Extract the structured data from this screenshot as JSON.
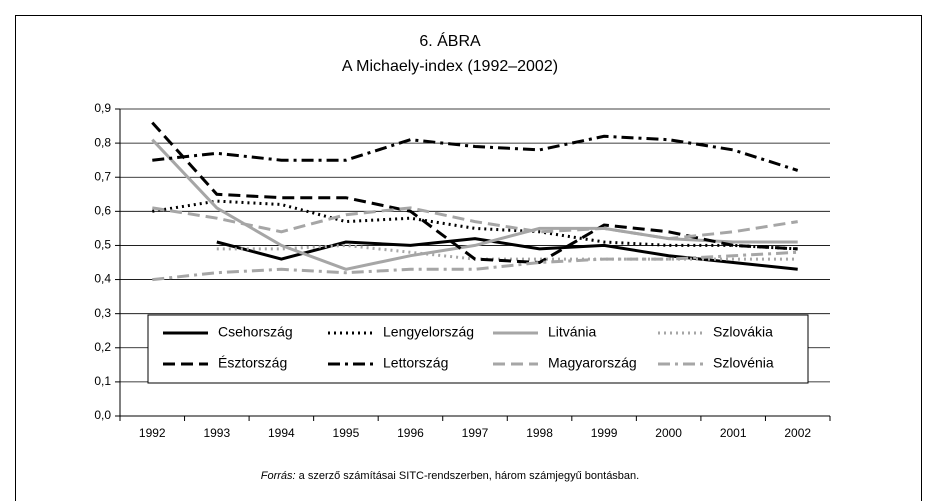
{
  "chart_data": {
    "type": "line",
    "title": "6. ÁBRA",
    "subtitle": "A Michaely-index (1992–2002)",
    "categories": [
      "1992",
      "1993",
      "1994",
      "1995",
      "1996",
      "1997",
      "1998",
      "1999",
      "2000",
      "2001",
      "2002"
    ],
    "series": [
      {
        "name": "Csehország",
        "color": "#000000",
        "dash": "solid",
        "values": [
          null,
          0.51,
          0.46,
          0.51,
          0.5,
          0.52,
          0.49,
          0.5,
          0.47,
          0.45,
          0.43
        ]
      },
      {
        "name": "Lengyelország",
        "color": "#000000",
        "dash": "dotted",
        "values": [
          0.6,
          0.63,
          0.62,
          0.57,
          0.58,
          0.55,
          0.54,
          0.51,
          0.5,
          0.5,
          0.49
        ]
      },
      {
        "name": "Litvánia",
        "color": "#a6a6a6",
        "dash": "solid",
        "values": [
          0.81,
          0.61,
          0.5,
          0.43,
          0.47,
          0.5,
          0.55,
          0.55,
          0.52,
          0.51,
          0.51
        ]
      },
      {
        "name": "Szlovákia",
        "color": "#a6a6a6",
        "dash": "dotted",
        "values": [
          null,
          0.49,
          0.49,
          0.5,
          0.48,
          0.46,
          0.46,
          0.46,
          0.46,
          0.46,
          0.46
        ]
      },
      {
        "name": "Észtország",
        "color": "#000000",
        "dash": "dashed",
        "values": [
          0.86,
          0.65,
          0.64,
          0.64,
          0.6,
          0.46,
          0.45,
          0.56,
          0.54,
          0.5,
          0.49
        ]
      },
      {
        "name": "Lettország",
        "color": "#000000",
        "dash": "dashdot",
        "values": [
          0.75,
          0.77,
          0.75,
          0.75,
          0.81,
          0.79,
          0.78,
          0.82,
          0.81,
          0.78,
          0.72
        ]
      },
      {
        "name": "Magyarország",
        "color": "#a6a6a6",
        "dash": "dashed",
        "values": [
          0.61,
          0.58,
          0.54,
          0.59,
          0.61,
          0.57,
          0.54,
          0.55,
          0.52,
          0.54,
          0.57
        ]
      },
      {
        "name": "Szlovénia",
        "color": "#a6a6a6",
        "dash": "dashdot",
        "values": [
          0.4,
          0.42,
          0.43,
          0.42,
          0.43,
          0.43,
          0.45,
          0.46,
          0.46,
          0.47,
          0.48
        ]
      }
    ],
    "ylim": [
      0,
      0.9
    ],
    "yticks": [
      {
        "value": 0,
        "label": "0,0"
      },
      {
        "value": 0.1,
        "label": "0,1"
      },
      {
        "value": 0.2,
        "label": "0,2"
      },
      {
        "value": 0.3,
        "label": "0,3"
      },
      {
        "value": 0.4,
        "label": "0,4"
      },
      {
        "value": 0.5,
        "label": "0,5"
      },
      {
        "value": 0.6,
        "label": "0,6"
      },
      {
        "value": 0.7,
        "label": "0,7"
      },
      {
        "value": 0.8,
        "label": "0,8"
      },
      {
        "value": 0.9,
        "label": "0,9"
      }
    ],
    "grid": true,
    "legend": "bottom",
    "source_label": "Forrás:",
    "source": "a szerző számításai SITC-rendszerben, három számjegyű bontásban."
  }
}
